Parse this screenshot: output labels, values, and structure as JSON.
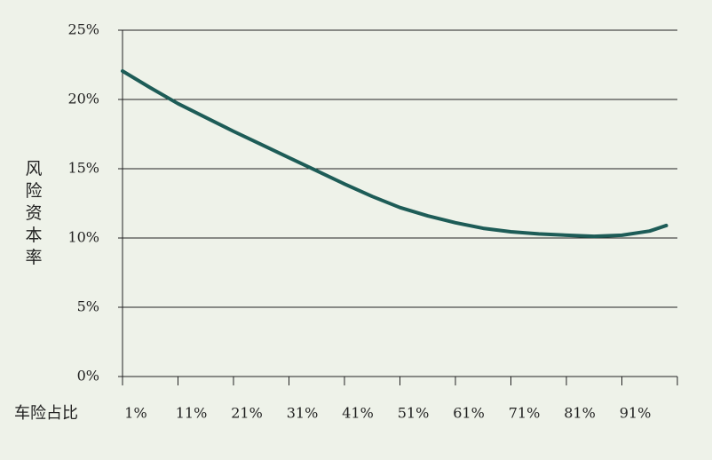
{
  "chart_data": {
    "type": "line",
    "ylabel": "风险资本率",
    "xlabel": "车险占比",
    "x": [
      1,
      6,
      11,
      16,
      21,
      26,
      31,
      36,
      41,
      46,
      51,
      56,
      61,
      66,
      71,
      76,
      81,
      86,
      91,
      96,
      99
    ],
    "series": [
      {
        "color": "#1d5c57",
        "values": [
          22.05,
          20.85,
          19.7,
          18.7,
          17.7,
          16.75,
          15.8,
          14.85,
          13.9,
          13.0,
          12.2,
          11.6,
          11.1,
          10.7,
          10.45,
          10.3,
          10.2,
          10.12,
          10.2,
          10.5,
          10.9
        ]
      }
    ],
    "xlim": [
      1,
      101
    ],
    "xticks": [
      {
        "value": 1,
        "label": "1%"
      },
      {
        "value": 11,
        "label": "11%"
      },
      {
        "value": 21,
        "label": "21%"
      },
      {
        "value": 31,
        "label": "31%"
      },
      {
        "value": 41,
        "label": "41%"
      },
      {
        "value": 51,
        "label": "51%"
      },
      {
        "value": 61,
        "label": "61%"
      },
      {
        "value": 71,
        "label": "71%"
      },
      {
        "value": 81,
        "label": "81%"
      },
      {
        "value": 91,
        "label": "91%"
      }
    ],
    "ylim": [
      0,
      25
    ],
    "yticks": [
      {
        "value": 0,
        "label": "0%"
      },
      {
        "value": 5,
        "label": "5%"
      },
      {
        "value": 10,
        "label": "10%"
      },
      {
        "value": 15,
        "label": "15%"
      },
      {
        "value": 20,
        "label": "20%"
      },
      {
        "value": 25,
        "label": "25%"
      }
    ],
    "grid": true
  }
}
